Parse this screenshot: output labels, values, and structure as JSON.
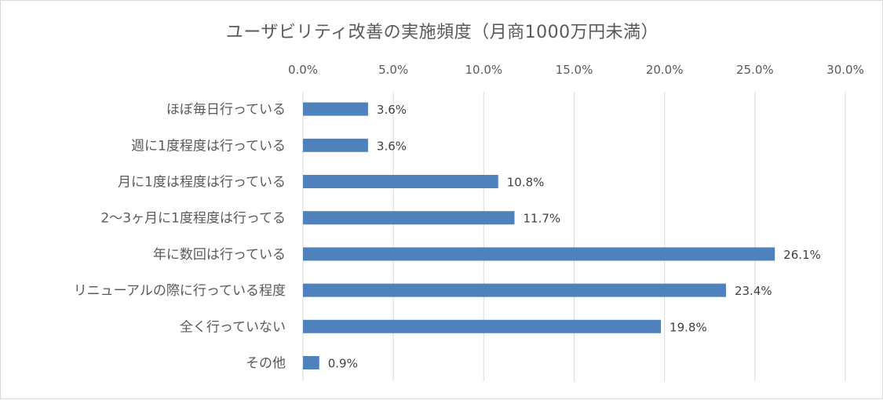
{
  "chart_data": {
    "type": "bar",
    "orientation": "horizontal",
    "title": "ユーザビリティ改善の実施頻度（月商1000万円未満）",
    "categories": [
      "ほぼ毎日行っている",
      "週に1度程度は行っている",
      "月に1度は程度は行っている",
      "2〜3ヶ月に1度程度は行ってる",
      "年に数回は行っている",
      "リニューアルの際に行っている程度",
      "全く行っていない",
      "その他"
    ],
    "values": [
      3.6,
      3.6,
      10.8,
      11.7,
      26.1,
      23.4,
      19.8,
      0.9
    ],
    "data_labels": [
      "3.6%",
      "3.6%",
      "10.8%",
      "11.7%",
      "26.1%",
      "23.4%",
      "19.8%",
      "0.9%"
    ],
    "xlim": [
      0,
      30
    ],
    "xticks": [
      0,
      5,
      10,
      15,
      20,
      25,
      30
    ],
    "xtick_labels": [
      "0.0%",
      "5.0%",
      "10.0%",
      "15.0%",
      "20.0%",
      "25.0%",
      "30.0%"
    ],
    "x_axis_position": "top",
    "grid": true,
    "legend": "none",
    "bar_color": "#4f81bd",
    "grid_color": "#d9d9d9"
  }
}
